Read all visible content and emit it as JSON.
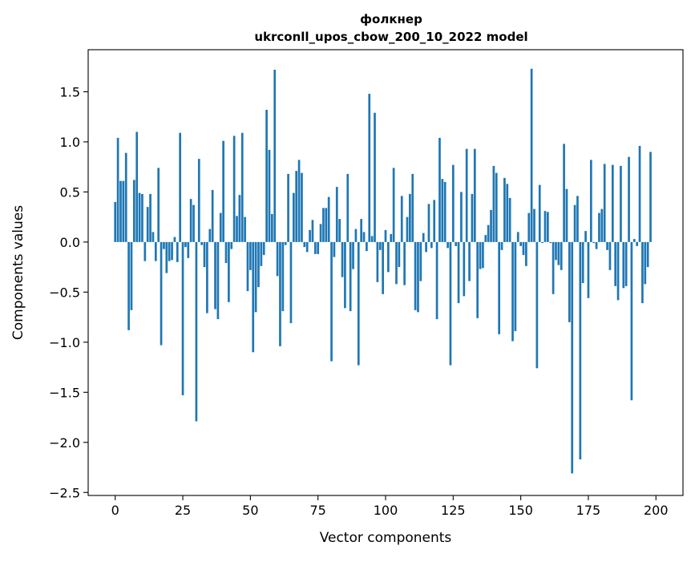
{
  "chart_data": {
    "type": "bar",
    "title": "фолкнер",
    "subtitle": "ukrconll_upos_cbow_200_10_2022 model",
    "xlabel": "Vector components",
    "ylabel": "Components values",
    "xlim": [
      -10,
      210
    ],
    "ylim": [
      -2.53,
      1.92
    ],
    "xticks": [
      0,
      25,
      50,
      75,
      100,
      125,
      150,
      175,
      200
    ],
    "yticks": [
      -2.5,
      -2.0,
      -1.5,
      -1.0,
      -0.5,
      0.0,
      0.5,
      1.0,
      1.5
    ],
    "ytick_labels": [
      "−2.5",
      "−2.0",
      "−1.5",
      "−1.0",
      "−0.5",
      "0.0",
      "0.5",
      "1.0",
      "1.5"
    ],
    "bar_color": "#1f77b4",
    "grid": false,
    "legend": false,
    "x": [
      0,
      1,
      2,
      3,
      4,
      5,
      6,
      7,
      8,
      9,
      10,
      11,
      12,
      13,
      14,
      15,
      16,
      17,
      18,
      19,
      20,
      21,
      22,
      23,
      24,
      25,
      26,
      27,
      28,
      29,
      30,
      31,
      32,
      33,
      34,
      35,
      36,
      37,
      38,
      39,
      40,
      41,
      42,
      43,
      44,
      45,
      46,
      47,
      48,
      49,
      50,
      51,
      52,
      53,
      54,
      55,
      56,
      57,
      58,
      59,
      60,
      61,
      62,
      63,
      64,
      65,
      66,
      67,
      68,
      69,
      70,
      71,
      72,
      73,
      74,
      75,
      76,
      77,
      78,
      79,
      80,
      81,
      82,
      83,
      84,
      85,
      86,
      87,
      88,
      89,
      90,
      91,
      92,
      93,
      94,
      95,
      96,
      97,
      98,
      99,
      100,
      101,
      102,
      103,
      104,
      105,
      106,
      107,
      108,
      109,
      110,
      111,
      112,
      113,
      114,
      115,
      116,
      117,
      118,
      119,
      120,
      121,
      122,
      123,
      124,
      125,
      126,
      127,
      128,
      129,
      130,
      131,
      132,
      133,
      134,
      135,
      136,
      137,
      138,
      139,
      140,
      141,
      142,
      143,
      144,
      145,
      146,
      147,
      148,
      149,
      150,
      151,
      152,
      153,
      154,
      155,
      156,
      157,
      158,
      159,
      160,
      161,
      162,
      163,
      164,
      165,
      166,
      167,
      168,
      169,
      170,
      171,
      172,
      173,
      174,
      175,
      176,
      177,
      178,
      179,
      180,
      181,
      182,
      183,
      184,
      185,
      186,
      187,
      188,
      189,
      190,
      191,
      192,
      193,
      194,
      195,
      196,
      197,
      198,
      199
    ],
    "values": [
      0.4,
      1.04,
      0.61,
      0.61,
      0.89,
      -0.88,
      -0.68,
      0.62,
      1.1,
      0.49,
      0.48,
      -0.19,
      0.35,
      0.48,
      0.1,
      -0.19,
      0.74,
      -1.03,
      -0.07,
      -0.31,
      -0.19,
      -0.18,
      0.05,
      -0.2,
      1.09,
      -1.53,
      -0.05,
      -0.16,
      0.43,
      0.37,
      -1.79,
      0.83,
      -0.03,
      -0.25,
      -0.71,
      0.13,
      0.52,
      -0.67,
      -0.77,
      0.29,
      1.01,
      -0.21,
      -0.6,
      -0.07,
      1.06,
      0.26,
      0.47,
      1.09,
      0.25,
      -0.49,
      -0.28,
      -1.1,
      -0.7,
      -0.45,
      -0.24,
      -0.13,
      1.32,
      0.92,
      0.28,
      1.72,
      -0.34,
      -1.04,
      -0.69,
      -0.03,
      0.68,
      -0.81,
      0.49,
      0.71,
      0.82,
      0.69,
      -0.05,
      -0.1,
      0.12,
      0.22,
      -0.12,
      -0.12,
      0.18,
      0.34,
      0.34,
      0.45,
      -1.19,
      -0.15,
      0.55,
      0.23,
      -0.35,
      -0.66,
      0.68,
      -0.69,
      -0.27,
      0.13,
      -1.23,
      0.23,
      0.1,
      -0.09,
      1.48,
      0.06,
      1.29,
      -0.4,
      -0.08,
      -0.52,
      0.12,
      -0.3,
      0.08,
      0.74,
      -0.42,
      -0.25,
      0.46,
      -0.43,
      0.25,
      0.48,
      0.68,
      -0.68,
      -0.7,
      -0.39,
      0.09,
      -0.1,
      0.38,
      -0.06,
      0.42,
      -0.77,
      1.04,
      0.63,
      0.6,
      -0.06,
      -1.23,
      0.77,
      -0.04,
      -0.61,
      0.5,
      -0.54,
      0.93,
      -0.39,
      0.48,
      0.93,
      -0.76,
      -0.27,
      -0.26,
      0.07,
      0.17,
      0.32,
      0.76,
      0.69,
      -0.92,
      -0.08,
      0.64,
      0.58,
      0.44,
      -0.99,
      -0.89,
      0.1,
      -0.04,
      -0.13,
      -0.24,
      0.29,
      1.73,
      0.33,
      -1.26,
      0.57,
      -0.01,
      0.31,
      0.3,
      -0.01,
      -0.52,
      -0.18,
      -0.23,
      -0.28,
      0.98,
      0.53,
      -0.8,
      -2.31,
      0.37,
      0.46,
      -2.17,
      -0.41,
      0.11,
      -0.56,
      0.82,
      -0.01,
      -0.07,
      0.29,
      0.33,
      0.78,
      -0.08,
      -0.28,
      0.77,
      -0.44,
      -0.58,
      0.76,
      -0.46,
      -0.44,
      0.85,
      -1.58,
      0.03,
      -0.04,
      0.96,
      -0.61,
      -0.42,
      -0.25,
      0.9,
      0.0
    ]
  }
}
